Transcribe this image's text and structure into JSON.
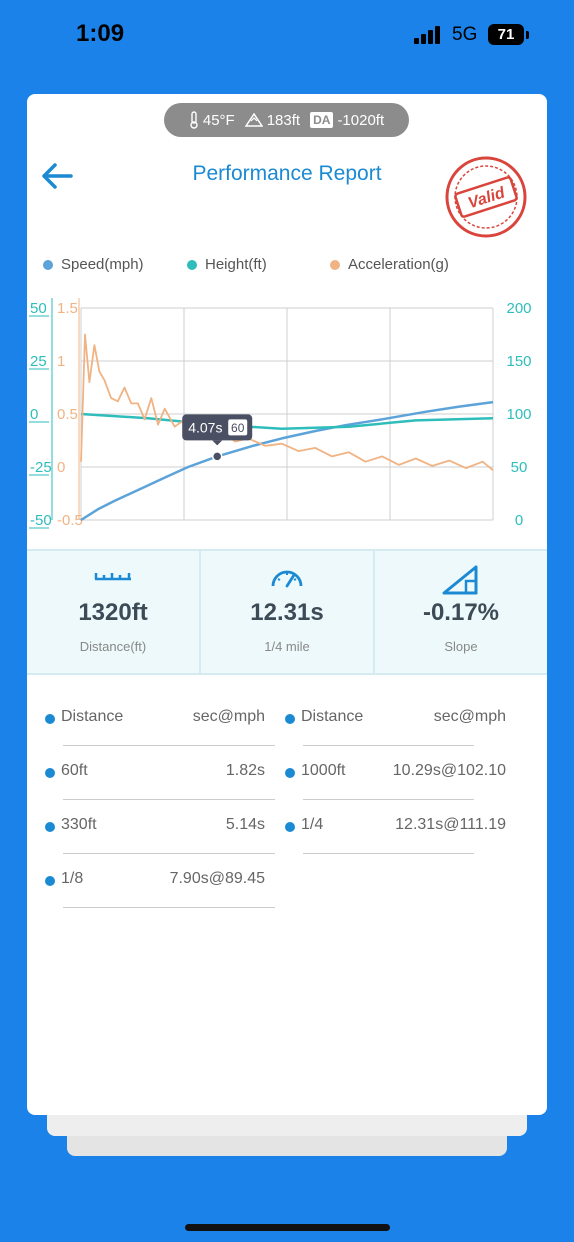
{
  "status_bar": {
    "time": "1:09",
    "network": "5G",
    "battery": "71"
  },
  "conditions": {
    "temperature": "45°F",
    "elevation": "183ft",
    "da_badge": "DA",
    "density_altitude": "-1020ft"
  },
  "header": {
    "title": "Performance Report",
    "stamp_text": "Valid"
  },
  "legend": [
    {
      "label": "Speed(mph)",
      "color": "#5ba3d8"
    },
    {
      "label": "Height(ft)",
      "color": "#2ebdbb"
    },
    {
      "label": "Acceleration(g)",
      "color": "#f0b384"
    }
  ],
  "chart_data": {
    "type": "line",
    "x_range": [
      0,
      12.31
    ],
    "axes": {
      "height_left": {
        "ticks": [
          "50",
          "25",
          "0",
          "-25",
          "-50"
        ],
        "range": [
          -50,
          50
        ],
        "color": "#2ebdbb"
      },
      "acceleration_left": {
        "ticks": [
          "1.5",
          "1",
          "0.5",
          "0",
          "-0.5"
        ],
        "range": [
          -0.5,
          1.5
        ],
        "color": "#f0b384"
      },
      "speed_right": {
        "ticks": [
          "200",
          "150",
          "100",
          "50",
          "0"
        ],
        "range": [
          0,
          200
        ],
        "color": "#2ebdbb"
      }
    },
    "grid": true,
    "series": [
      {
        "name": "Speed(mph)",
        "axis": "speed_right",
        "color": "#5ba3d8",
        "points": [
          [
            0,
            0
          ],
          [
            0.5,
            10
          ],
          [
            1.0,
            18
          ],
          [
            1.82,
            30
          ],
          [
            2.5,
            40
          ],
          [
            3.2,
            50
          ],
          [
            4.07,
            60
          ],
          [
            5.14,
            70
          ],
          [
            6.0,
            77
          ],
          [
            7.0,
            84
          ],
          [
            7.9,
            89.45
          ],
          [
            9.0,
            95
          ],
          [
            10.29,
            102.1
          ],
          [
            11.3,
            107
          ],
          [
            12.31,
            111.19
          ]
        ]
      },
      {
        "name": "Height(ft)",
        "axis": "height_left",
        "color": "#2ebdbb",
        "points": [
          [
            0,
            0
          ],
          [
            2,
            -2
          ],
          [
            4,
            -5
          ],
          [
            6,
            -7
          ],
          [
            8,
            -6
          ],
          [
            10,
            -3
          ],
          [
            12.31,
            -2
          ]
        ]
      },
      {
        "name": "Acceleration(g)",
        "axis": "acceleration_left",
        "color": "#f0b384",
        "points": [
          [
            0,
            0.05
          ],
          [
            0.12,
            1.25
          ],
          [
            0.25,
            0.8
          ],
          [
            0.4,
            1.15
          ],
          [
            0.55,
            0.9
          ],
          [
            0.7,
            0.82
          ],
          [
            0.9,
            0.65
          ],
          [
            1.1,
            0.62
          ],
          [
            1.3,
            0.75
          ],
          [
            1.5,
            0.6
          ],
          [
            1.7,
            0.6
          ],
          [
            1.9,
            0.45
          ],
          [
            2.1,
            0.65
          ],
          [
            2.3,
            0.4
          ],
          [
            2.5,
            0.55
          ],
          [
            2.8,
            0.38
          ],
          [
            3.1,
            0.45
          ],
          [
            3.4,
            0.32
          ],
          [
            3.7,
            0.36
          ],
          [
            4.0,
            0.28
          ],
          [
            4.3,
            0.32
          ],
          [
            4.6,
            0.24
          ],
          [
            5.0,
            0.27
          ],
          [
            5.5,
            0.2
          ],
          [
            6.0,
            0.22
          ],
          [
            6.5,
            0.15
          ],
          [
            7.0,
            0.18
          ],
          [
            7.5,
            0.1
          ],
          [
            8.0,
            0.14
          ],
          [
            8.5,
            0.05
          ],
          [
            9.0,
            0.1
          ],
          [
            9.5,
            0.02
          ],
          [
            10.0,
            0.08
          ],
          [
            10.5,
            0.01
          ],
          [
            11.0,
            0.06
          ],
          [
            11.5,
            -0.01
          ],
          [
            12.0,
            0.05
          ],
          [
            12.31,
            -0.03
          ]
        ]
      }
    ],
    "tooltip": {
      "time": "4.07s",
      "speed": "60",
      "x": 4.07,
      "y": 60
    }
  },
  "stats": [
    {
      "value": "1320ft",
      "label": "Distance(ft)",
      "icon": "ruler-icon"
    },
    {
      "value": "12.31s",
      "label": "1/4 mile",
      "icon": "speedometer-icon"
    },
    {
      "value": "-0.17%",
      "label": "Slope",
      "icon": "slope-icon"
    }
  ],
  "splits": {
    "header": {
      "left_label": "Distance",
      "left_value": "sec@mph",
      "right_label": "Distance",
      "right_value": "sec@mph"
    },
    "left_rows": [
      {
        "label": "60ft",
        "value": "1.82s"
      },
      {
        "label": "330ft",
        "value": "5.14s"
      },
      {
        "label": "1/8",
        "value": "7.90s@89.45"
      }
    ],
    "right_rows": [
      {
        "label": "1000ft",
        "value": "10.29s@102.10"
      },
      {
        "label": "1/4",
        "value": "12.31s@111.19"
      }
    ]
  }
}
